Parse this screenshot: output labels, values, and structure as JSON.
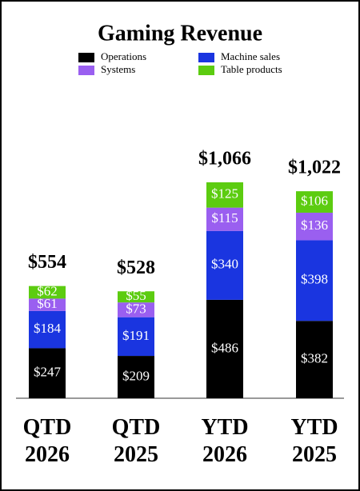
{
  "chart_data": {
    "type": "stacked-bar",
    "title": "Gaming Revenue",
    "categories": [
      "QTD 2026",
      "QTD 2025",
      "YTD 2026",
      "YTD 2025"
    ],
    "series": [
      {
        "name": "Operations",
        "color": "#000000",
        "values": [
          247,
          209,
          486,
          382
        ],
        "value_labels": [
          "$247",
          "$209",
          "$486",
          "$382"
        ]
      },
      {
        "name": "Machine sales",
        "color": "#1a35e0",
        "values": [
          184,
          191,
          340,
          398
        ],
        "value_labels": [
          "$184",
          "$191",
          "$340",
          "$398"
        ]
      },
      {
        "name": "Systems",
        "color": "#9a5ff0",
        "values": [
          61,
          73,
          115,
          136
        ],
        "value_labels": [
          "$61",
          "$73",
          "$115",
          "$136"
        ]
      },
      {
        "name": "Table products",
        "color": "#5ccc10",
        "values": [
          62,
          55,
          125,
          106
        ],
        "value_labels": [
          "$62",
          "$55",
          "$125",
          "$106"
        ]
      }
    ],
    "totals": {
      "values": [
        554,
        528,
        1066,
        1022
      ],
      "value_labels": [
        "$554",
        "$528",
        "$1,066",
        "$1,022"
      ]
    }
  }
}
